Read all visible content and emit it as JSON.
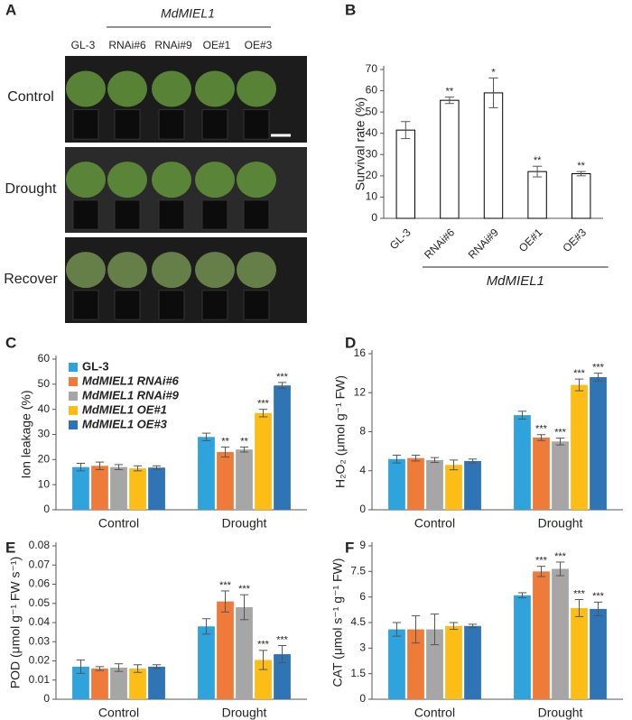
{
  "panel_a": {
    "panel": "A",
    "group_label": "MdMIEL1",
    "genotypes": [
      "GL-3",
      "RNAi#6",
      "RNAi#9",
      "OE#1",
      "OE#3"
    ],
    "conditions": [
      "Control",
      "Drought",
      "Recover"
    ]
  },
  "chart_data": [
    {
      "panel": "B",
      "type": "bar",
      "ylabel": "Survival rate (%)",
      "categories": [
        "GL-3",
        "RNAi#6",
        "RNAi#9",
        "OE#1",
        "OE#3"
      ],
      "values": [
        41.5,
        55.5,
        59,
        22,
        21
      ],
      "errors": [
        4,
        1.5,
        7,
        2.5,
        1
      ],
      "significance": [
        null,
        "**",
        "*",
        "**",
        "**"
      ],
      "color": "#ffffff",
      "edgecolor": "#000000",
      "ylim": [
        0,
        70
      ],
      "yticks": [
        0,
        10,
        20,
        30,
        40,
        50,
        60,
        70
      ],
      "xtick_rotation": -45,
      "group_label": "MdMIEL1"
    },
    {
      "panel": "C",
      "type": "bar",
      "ylabel": "Ion leakage (%)",
      "categories": [
        "Control",
        "Drought"
      ],
      "ylim": [
        0,
        60
      ],
      "yticks": [
        0,
        10,
        20,
        30,
        40,
        50,
        60
      ],
      "legend": "upper left",
      "series": [
        {
          "name": "GL-3",
          "color": "#2ea3dc",
          "values": [
            17,
            29
          ],
          "errors": [
            1.5,
            1.5
          ],
          "significance": [
            null,
            null
          ]
        },
        {
          "name": "MdMIEL1 RNAi#6",
          "color": "#ef7b3b",
          "values": [
            17.5,
            23
          ],
          "errors": [
            1.5,
            2
          ],
          "significance": [
            null,
            "**"
          ]
        },
        {
          "name": "MdMIEL1 RNAi#9",
          "color": "#a6a6a6",
          "values": [
            17,
            24
          ],
          "errors": [
            1,
            1
          ],
          "significance": [
            null,
            "**"
          ]
        },
        {
          "name": "MdMIEL1 OE#1",
          "color": "#fdbd17",
          "values": [
            16.5,
            38.5
          ],
          "errors": [
            1,
            1.5
          ],
          "significance": [
            null,
            "***"
          ]
        },
        {
          "name": "MdMIEL1 OE#3",
          "color": "#2f74b5",
          "values": [
            16.8,
            49.5
          ],
          "errors": [
            0.7,
            1.2
          ],
          "significance": [
            null,
            "***"
          ]
        }
      ]
    },
    {
      "panel": "D",
      "type": "bar",
      "ylabel": "H₂O₂ (μmol g⁻¹ FW)",
      "categories": [
        "Control",
        "Drought"
      ],
      "ylim": [
        0,
        16
      ],
      "yticks": [
        0,
        4,
        8,
        12,
        16
      ],
      "series": [
        {
          "name": "GL-3",
          "color": "#2ea3dc",
          "values": [
            5.2,
            9.7
          ],
          "errors": [
            0.4,
            0.4
          ],
          "significance": [
            null,
            null
          ]
        },
        {
          "name": "MdMIEL1 RNAi#6",
          "color": "#ef7b3b",
          "values": [
            5.3,
            7.4
          ],
          "errors": [
            0.3,
            0.3
          ],
          "significance": [
            null,
            "***"
          ]
        },
        {
          "name": "MdMIEL1 RNAi#9",
          "color": "#a6a6a6",
          "values": [
            5.1,
            7.0
          ],
          "errors": [
            0.25,
            0.35
          ],
          "significance": [
            null,
            "***"
          ]
        },
        {
          "name": "MdMIEL1 OE#1",
          "color": "#fdbd17",
          "values": [
            4.6,
            12.8
          ],
          "errors": [
            0.5,
            0.6
          ],
          "significance": [
            null,
            "***"
          ]
        },
        {
          "name": "MdMIEL1 OE#3",
          "color": "#2f74b5",
          "values": [
            5.0,
            13.6
          ],
          "errors": [
            0.2,
            0.4
          ],
          "significance": [
            null,
            "***"
          ]
        }
      ]
    },
    {
      "panel": "E",
      "type": "bar",
      "ylabel": "POD (μmol g⁻¹ FW s⁻¹)",
      "categories": [
        "Control",
        "Drought"
      ],
      "ylim": [
        0,
        0.08
      ],
      "yticks": [
        0,
        0.01,
        0.02,
        0.03,
        0.04,
        0.05,
        0.06,
        0.07,
        0.08
      ],
      "series": [
        {
          "name": "GL-3",
          "color": "#2ea3dc",
          "values": [
            0.017,
            0.038
          ],
          "errors": [
            0.0035,
            0.004
          ],
          "significance": [
            null,
            null
          ]
        },
        {
          "name": "MdMIEL1 RNAi#6",
          "color": "#ef7b3b",
          "values": [
            0.016,
            0.051
          ],
          "errors": [
            0.001,
            0.0055
          ],
          "significance": [
            null,
            "***"
          ]
        },
        {
          "name": "MdMIEL1 RNAi#9",
          "color": "#a6a6a6",
          "values": [
            0.0165,
            0.048
          ],
          "errors": [
            0.002,
            0.0065
          ],
          "significance": [
            null,
            "***"
          ]
        },
        {
          "name": "MdMIEL1 OE#1",
          "color": "#fdbd17",
          "values": [
            0.016,
            0.0205
          ],
          "errors": [
            0.002,
            0.005
          ],
          "significance": [
            null,
            "***"
          ]
        },
        {
          "name": "MdMIEL1 OE#3",
          "color": "#2f74b5",
          "values": [
            0.017,
            0.0235
          ],
          "errors": [
            0.001,
            0.0045
          ],
          "significance": [
            null,
            "***"
          ]
        }
      ]
    },
    {
      "panel": "F",
      "type": "bar",
      "ylabel": "CAT (μmol s⁻¹ g⁻¹ FW)",
      "categories": [
        "Control",
        "Drought"
      ],
      "ylim": [
        0,
        9
      ],
      "yticks": [
        0,
        1.5,
        3,
        4.5,
        6,
        7.5,
        9
      ],
      "series": [
        {
          "name": "GL-3",
          "color": "#2ea3dc",
          "values": [
            4.1,
            6.1
          ],
          "errors": [
            0.4,
            0.15
          ],
          "significance": [
            null,
            null
          ]
        },
        {
          "name": "MdMIEL1 RNAi#6",
          "color": "#ef7b3b",
          "values": [
            4.1,
            7.5
          ],
          "errors": [
            0.8,
            0.3
          ],
          "significance": [
            null,
            "***"
          ]
        },
        {
          "name": "MdMIEL1 RNAi#9",
          "color": "#a6a6a6",
          "values": [
            4.1,
            7.65
          ],
          "errors": [
            0.9,
            0.4
          ],
          "significance": [
            null,
            "***"
          ]
        },
        {
          "name": "MdMIEL1 OE#1",
          "color": "#fdbd17",
          "values": [
            4.3,
            5.35
          ],
          "errors": [
            0.2,
            0.5
          ],
          "significance": [
            null,
            "***"
          ]
        },
        {
          "name": "MdMIEL1 OE#3",
          "color": "#2f74b5",
          "values": [
            4.3,
            5.3
          ],
          "errors": [
            0.1,
            0.4
          ],
          "significance": [
            null,
            "***"
          ]
        }
      ]
    }
  ]
}
